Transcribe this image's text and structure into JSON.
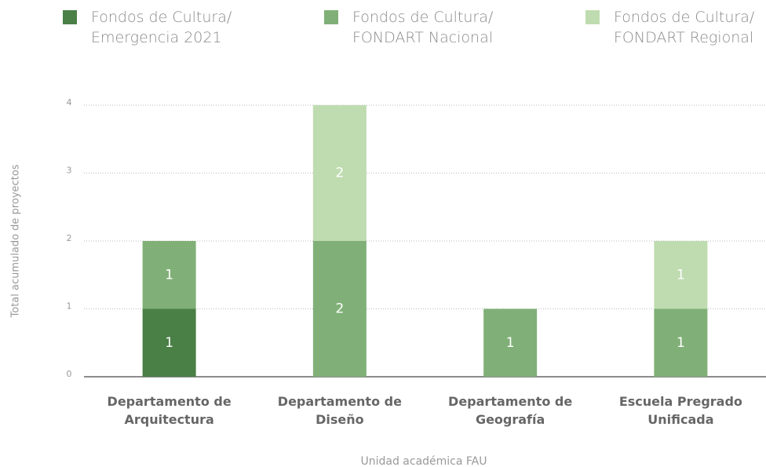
{
  "chart_data": {
    "type": "stacked_bar",
    "categories": [
      "Departamento de Arquitectura",
      "Departamento de Diseño",
      "Departamento de Geografía",
      "Escuela Pregrado Unificada"
    ],
    "series": [
      {
        "name": "Fondos de Cultura/ Emergencia 2021",
        "color": "#4a7f46",
        "values": [
          1,
          null,
          null,
          null
        ]
      },
      {
        "name": "Fondos de Cultura/ FONDART Nacional",
        "color": "#80b077",
        "values": [
          1,
          2,
          1,
          1
        ]
      },
      {
        "name": "Fondos de Cultura/ FONDART Regional",
        "color": "#bfdcb0",
        "values": [
          null,
          2,
          null,
          1
        ]
      }
    ],
    "ylim": [
      0,
      4
    ],
    "yticks": [
      0,
      1,
      2,
      3,
      4
    ],
    "grid": true,
    "ylabel": "Total acumulado de proyectos",
    "xlabel": "Unidad académica FAU"
  }
}
